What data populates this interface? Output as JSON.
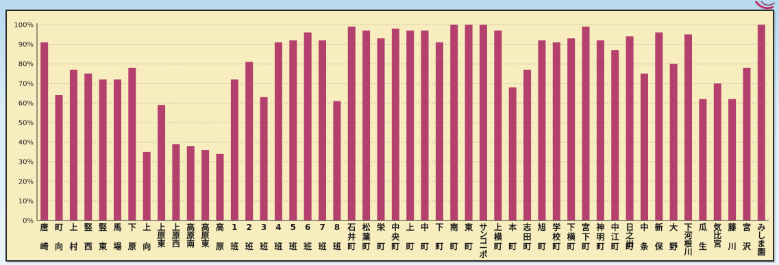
{
  "chart_data": {
    "type": "bar",
    "title": "",
    "xlabel": "",
    "ylabel": "",
    "ylim": [
      0,
      100
    ],
    "yticks": [
      "0%",
      "10%",
      "20%",
      "30%",
      "40%",
      "50%",
      "60%",
      "70%",
      "80%",
      "90%",
      "100%"
    ],
    "grid": true,
    "bar_color": "#b4406e",
    "grid_color": "#9a8f78",
    "categories": [
      "唐崎",
      "町向",
      "上村",
      "竪西",
      "竪東",
      "馬場",
      "下原",
      "上向",
      "上原東",
      "上原西",
      "高原南",
      "高原東",
      "高原",
      "1班",
      "2班",
      "3班",
      "4班",
      "5班",
      "6班",
      "7班",
      "8班",
      "石井町",
      "松葉町",
      "栄町",
      "中央町",
      "上町",
      "中町",
      "下町",
      "南町",
      "東町",
      "サンコーポ",
      "上横町",
      "本町",
      "志田町",
      "旭町",
      "学校町",
      "下横町",
      "宮下町",
      "神明町",
      "中江町",
      "日之出町",
      "中条",
      "新保",
      "大野",
      "下河根川",
      "瓜生",
      "気比宮",
      "藤川",
      "宮沢",
      "みしま園"
    ],
    "labels_top": [
      "唐",
      "町",
      "上",
      "竪",
      "竪",
      "馬",
      "下",
      "上",
      "上\n原\n東",
      "上\n原\n西",
      "高\n原\n南",
      "高\n原\n東",
      "高",
      "1",
      "2",
      "3",
      "4",
      "5",
      "6",
      "7",
      "8",
      "石\n井",
      "松\n葉",
      "栄",
      "中\n央",
      "上",
      "中",
      "下",
      "南",
      "東",
      "サ\nン\nコ\nー\nポ",
      "上\n横",
      "本",
      "志\n田",
      "旭",
      "学\n校",
      "下\n横",
      "宮\n下",
      "神\n明",
      "中\n江",
      "日\n之\n出",
      "中",
      "新",
      "大",
      "下\n河\n根\n川",
      "瓜",
      "気\n比\n宮",
      "藤",
      "宮",
      "み\nし\nま\n園"
    ],
    "labels_bottom": [
      "崎",
      "向",
      "村",
      "西",
      "東",
      "場",
      "原",
      "向",
      "",
      "",
      "",
      "",
      "原",
      "班",
      "班",
      "班",
      "班",
      "班",
      "班",
      "班",
      "班",
      "町",
      "町",
      "町",
      "町",
      "町",
      "町",
      "町",
      "町",
      "町",
      "",
      "町",
      "町",
      "町",
      "町",
      "町",
      "町",
      "町",
      "町",
      "町",
      "町",
      "条",
      "保",
      "野",
      "",
      "生",
      "",
      "川",
      "沢",
      ""
    ],
    "values": [
      91,
      64,
      77,
      75,
      72,
      72,
      78,
      35,
      59,
      39,
      38,
      36,
      34,
      72,
      81,
      63,
      91,
      92,
      96,
      92,
      61,
      99,
      97,
      93,
      98,
      97,
      97,
      91,
      100,
      100,
      100,
      97,
      68,
      77,
      92,
      91,
      93,
      99,
      92,
      87,
      94,
      75,
      96,
      80,
      95,
      62,
      70,
      62,
      78,
      100
    ]
  }
}
